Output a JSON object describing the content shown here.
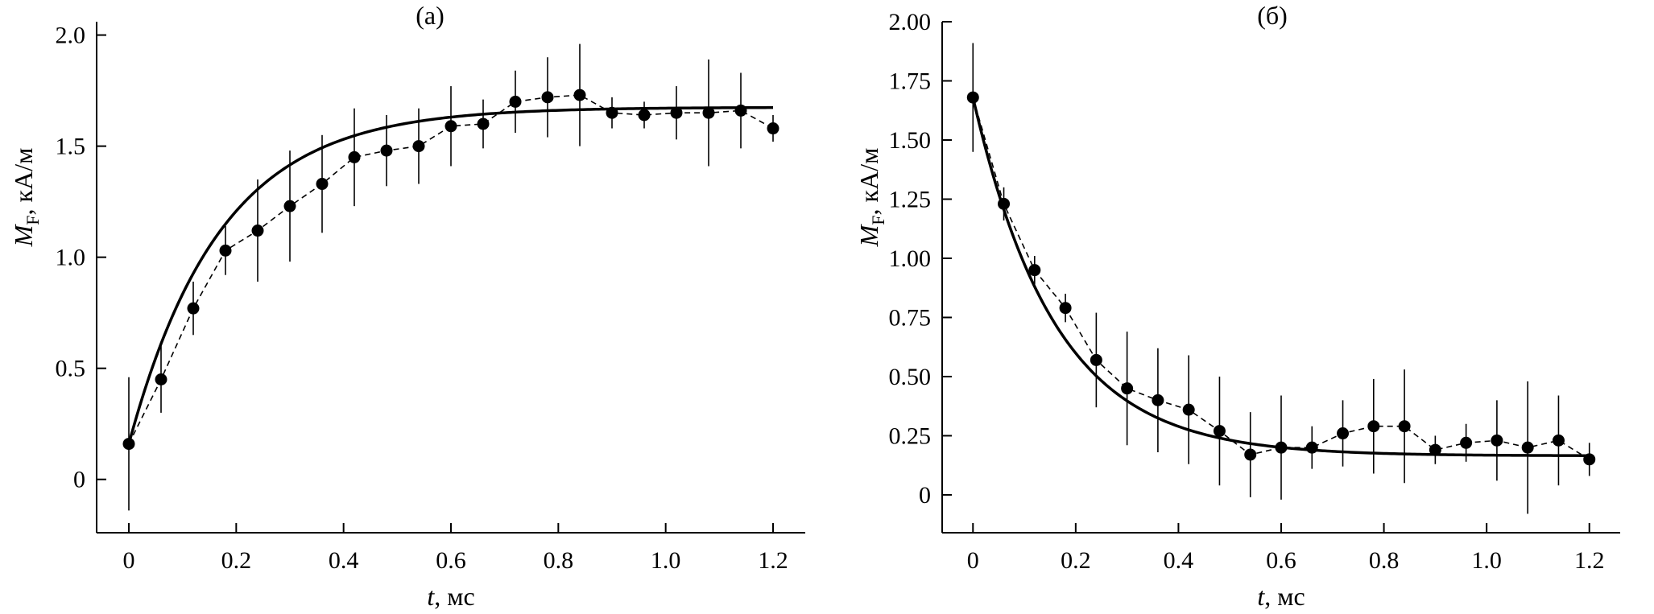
{
  "chart_data": [
    {
      "type": "scatter",
      "title": "(а)",
      "xlabel": {
        "var": "t",
        "rest": ", мс"
      },
      "ylabel": {
        "var": "M",
        "sub": "F",
        "rest": ", кА/м"
      },
      "xlim": [
        -0.06,
        1.26
      ],
      "ylim": [
        -0.24,
        2.06
      ],
      "xticks": [
        0,
        0.2,
        0.4,
        0.6,
        0.8,
        1.0,
        1.2
      ],
      "xtick_labels": [
        "0",
        "0.2",
        "0.4",
        "0.6",
        "0.8",
        "1.0",
        "1.2"
      ],
      "yticks": [
        0,
        0.5,
        1.0,
        1.5,
        2.0
      ],
      "ytick_labels": [
        "0",
        "0.5",
        "1.0",
        "1.5",
        "2.0"
      ],
      "grid": false,
      "series": [
        {
          "style": "markers with error bars, dashed connecting line",
          "x": [
            0,
            0.06,
            0.12,
            0.18,
            0.24,
            0.3,
            0.36,
            0.42,
            0.48,
            0.54,
            0.6,
            0.66,
            0.72,
            0.78,
            0.84,
            0.9,
            0.96,
            1.02,
            1.08,
            1.14,
            1.2
          ],
          "y": [
            0.16,
            0.45,
            0.77,
            1.03,
            1.12,
            1.23,
            1.33,
            1.45,
            1.48,
            1.5,
            1.59,
            1.6,
            1.7,
            1.72,
            1.73,
            1.65,
            1.64,
            1.65,
            1.65,
            1.66,
            1.58
          ],
          "err": [
            0.3,
            0.15,
            0.12,
            0.11,
            0.23,
            0.25,
            0.22,
            0.22,
            0.16,
            0.17,
            0.18,
            0.11,
            0.14,
            0.18,
            0.23,
            0.07,
            0.06,
            0.12,
            0.24,
            0.17,
            0.06
          ]
        },
        {
          "style": "solid fit curve",
          "function": "exponential approach",
          "y0": 0.16,
          "y_inf": 1.675,
          "tau": 0.17,
          "x_range": [
            0,
            1.2
          ]
        }
      ]
    },
    {
      "type": "scatter",
      "title": "(б)",
      "xlabel": {
        "var": "t",
        "rest": ", мс"
      },
      "ylabel": {
        "var": "M",
        "sub": "F",
        "rest": ", кА/м"
      },
      "xlim": [
        -0.06,
        1.26
      ],
      "ylim": [
        -0.16,
        2.0
      ],
      "xticks": [
        0,
        0.2,
        0.4,
        0.6,
        0.8,
        1.0,
        1.2
      ],
      "xtick_labels": [
        "0",
        "0.2",
        "0.4",
        "0.6",
        "0.8",
        "1.0",
        "1.2"
      ],
      "yticks": [
        0,
        0.25,
        0.5,
        0.75,
        1.0,
        1.25,
        1.5,
        1.75,
        2.0
      ],
      "ytick_labels": [
        "0",
        "0.25",
        "0.50",
        "0.75",
        "1.00",
        "1.25",
        "1.50",
        "1.75",
        "2.00"
      ],
      "grid": false,
      "series": [
        {
          "style": "markers with error bars, dashed connecting line",
          "x": [
            0,
            0.06,
            0.12,
            0.18,
            0.24,
            0.3,
            0.36,
            0.42,
            0.48,
            0.54,
            0.6,
            0.66,
            0.72,
            0.78,
            0.84,
            0.9,
            0.96,
            1.02,
            1.08,
            1.14,
            1.2
          ],
          "y": [
            1.68,
            1.23,
            0.95,
            0.79,
            0.57,
            0.45,
            0.4,
            0.36,
            0.27,
            0.17,
            0.2,
            0.2,
            0.26,
            0.29,
            0.29,
            0.19,
            0.22,
            0.23,
            0.2,
            0.23,
            0.15
          ],
          "err": [
            0.23,
            0.07,
            0.06,
            0.06,
            0.2,
            0.24,
            0.22,
            0.23,
            0.23,
            0.18,
            0.22,
            0.09,
            0.14,
            0.2,
            0.24,
            0.06,
            0.08,
            0.17,
            0.28,
            0.19,
            0.07
          ]
        },
        {
          "style": "solid fit curve",
          "function": "exponential decay",
          "y0": 1.68,
          "y_inf": 0.165,
          "tau": 0.16,
          "x_range": [
            0,
            1.2
          ]
        }
      ]
    }
  ]
}
